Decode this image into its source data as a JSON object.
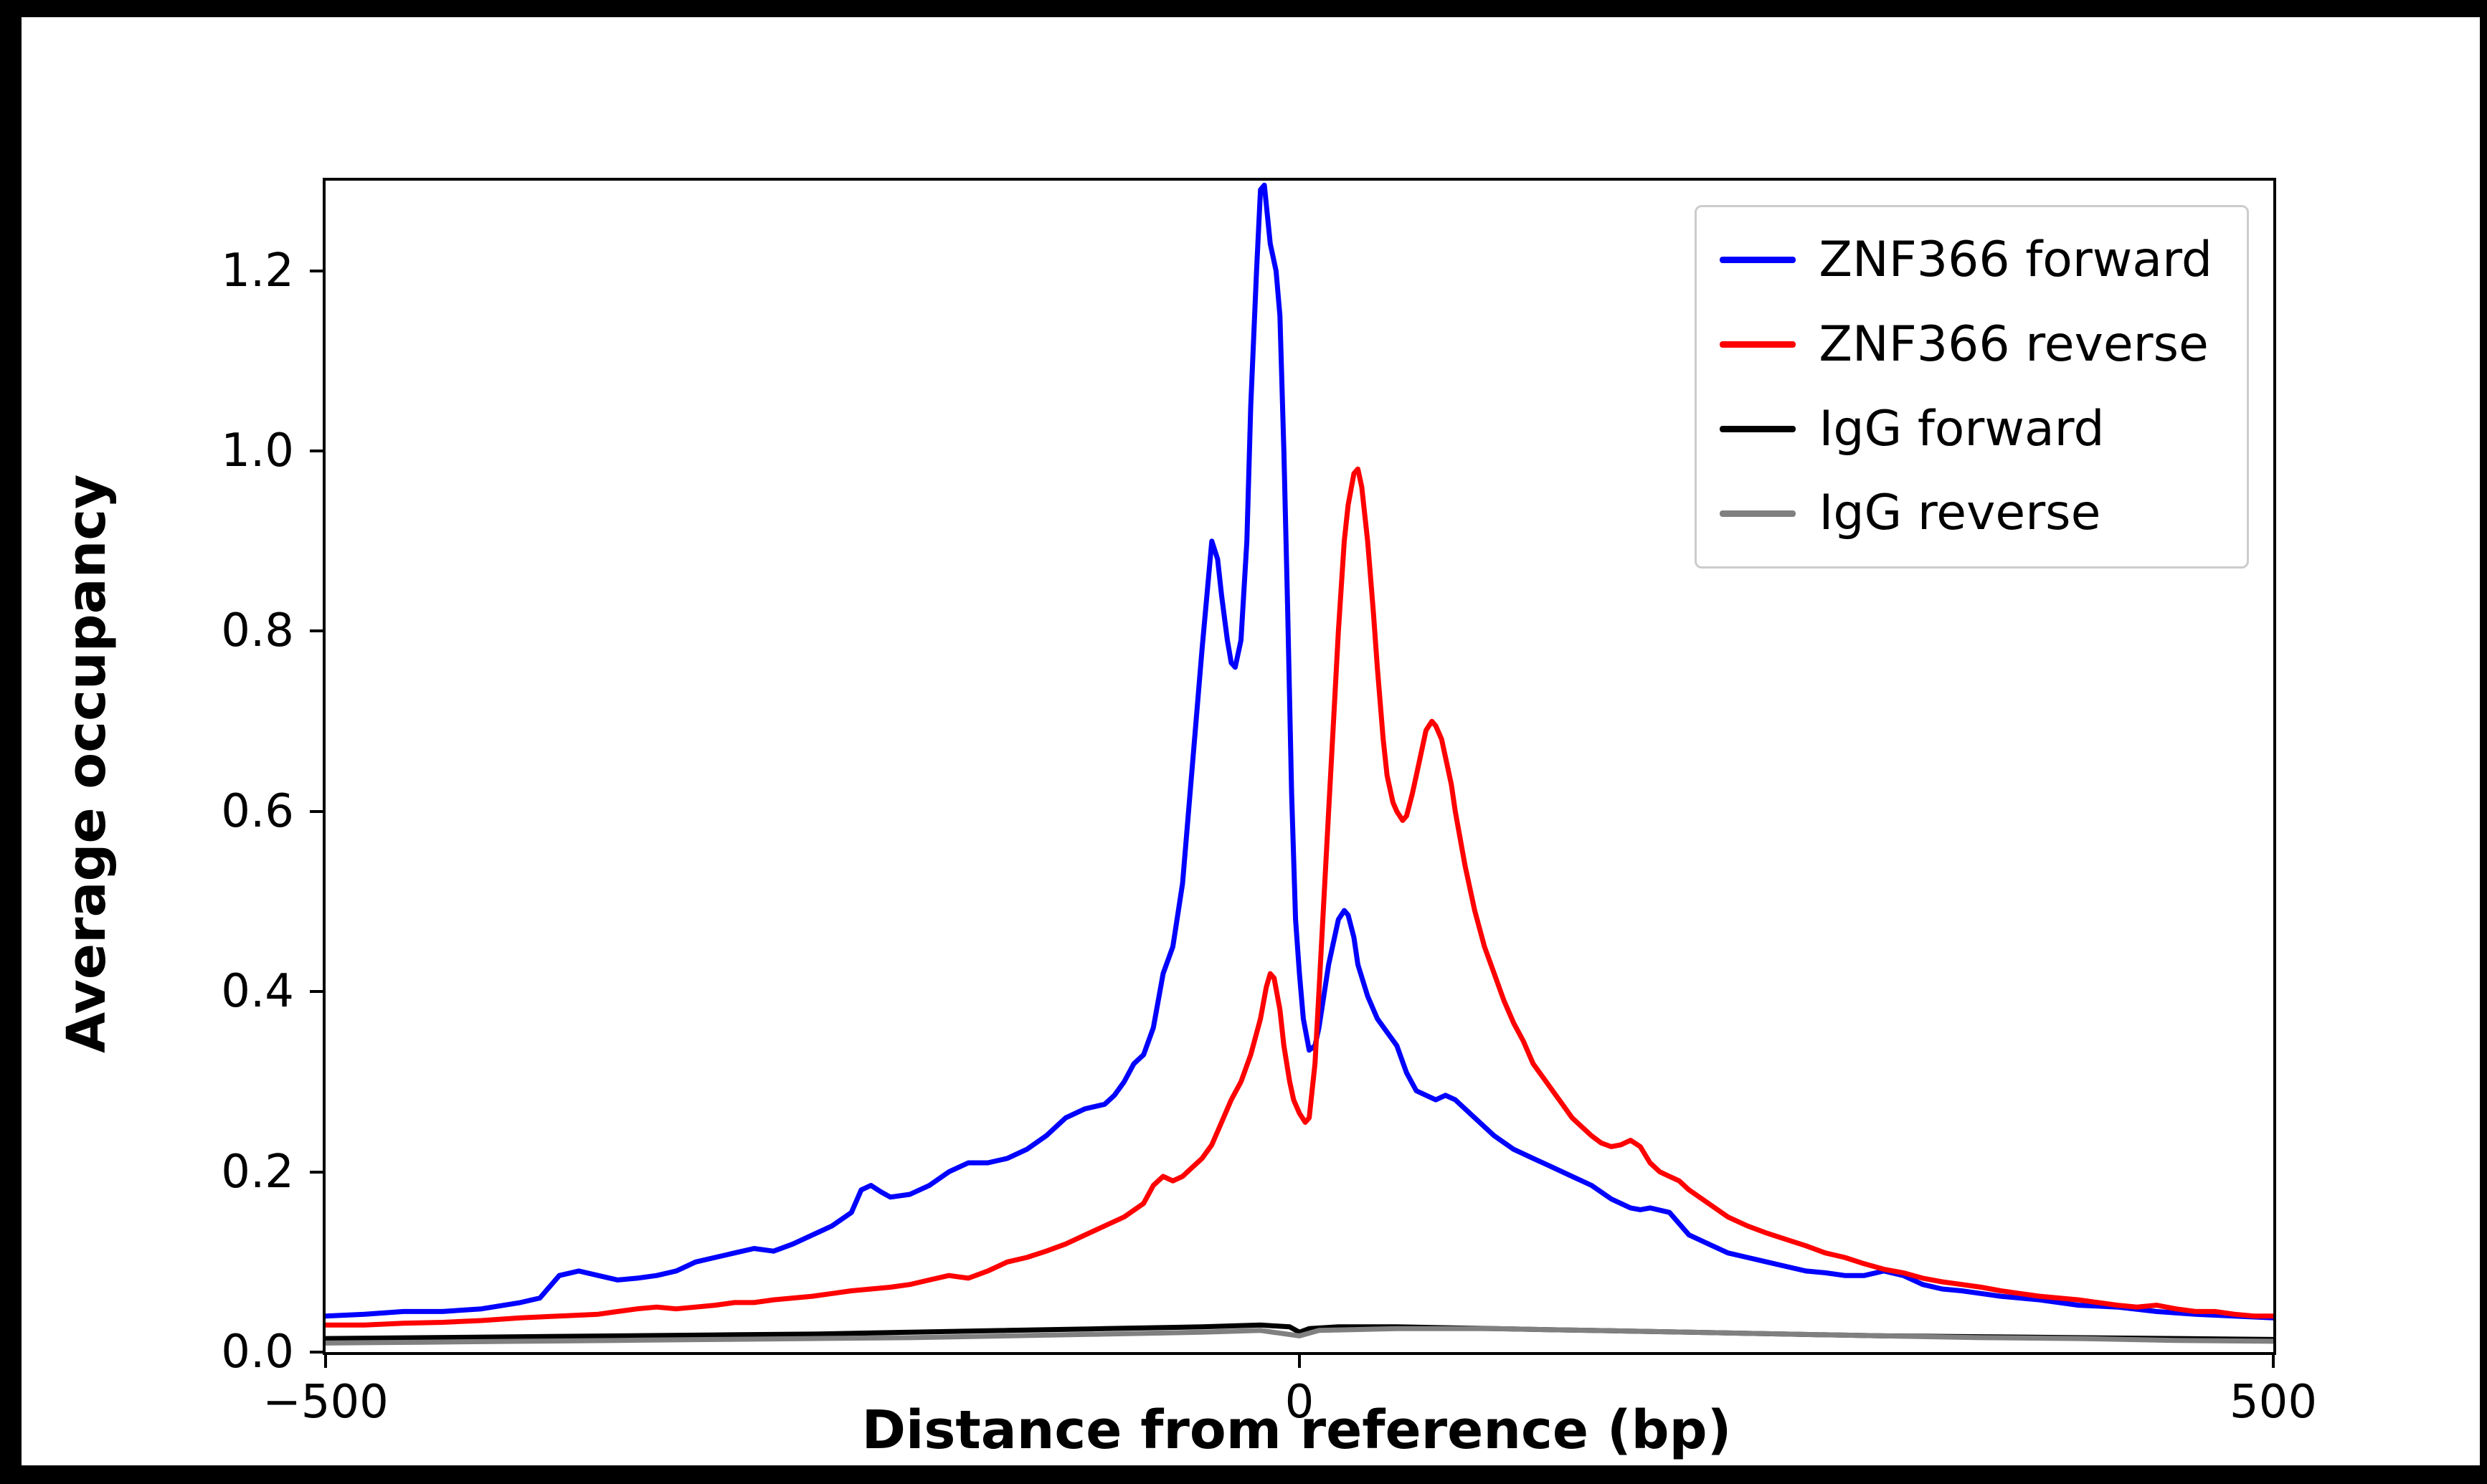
{
  "chart_data": {
    "type": "line",
    "title": "",
    "xlabel": "Distance from reference (bp)",
    "ylabel": "Average occupancy",
    "xlim": [
      -500,
      500
    ],
    "ylim": [
      0,
      1.3
    ],
    "grid": false,
    "legend_position": "upper right",
    "xticks": [
      {
        "value": -500,
        "label": "−500"
      },
      {
        "value": 0,
        "label": "0"
      },
      {
        "value": 500,
        "label": "500"
      }
    ],
    "yticks": [
      {
        "value": 0.0,
        "label": "0.0"
      },
      {
        "value": 0.2,
        "label": "0.2"
      },
      {
        "value": 0.4,
        "label": "0.4"
      },
      {
        "value": 0.6,
        "label": "0.6"
      },
      {
        "value": 0.8,
        "label": "0.8"
      },
      {
        "value": 1.0,
        "label": "1.0"
      },
      {
        "value": 1.2,
        "label": "1.2"
      }
    ],
    "series": [
      {
        "name": "ZNF366 forward",
        "color": "#0000ff",
        "x": [
          -500,
          -480,
          -460,
          -440,
          -420,
          -400,
          -390,
          -380,
          -370,
          -360,
          -350,
          -340,
          -330,
          -320,
          -310,
          -300,
          -290,
          -280,
          -270,
          -260,
          -250,
          -240,
          -230,
          -225,
          -220,
          -215,
          -210,
          -200,
          -190,
          -180,
          -170,
          -160,
          -150,
          -140,
          -130,
          -120,
          -110,
          -100,
          -95,
          -90,
          -85,
          -80,
          -75,
          -70,
          -65,
          -60,
          -55,
          -50,
          -45,
          -42,
          -40,
          -37,
          -35,
          -33,
          -30,
          -27,
          -25,
          -22,
          -20,
          -18,
          -15,
          -12,
          -10,
          -8,
          -6,
          -4,
          -2,
          0,
          2,
          5,
          8,
          10,
          15,
          20,
          23,
          25,
          28,
          30,
          35,
          40,
          45,
          50,
          55,
          60,
          65,
          70,
          75,
          80,
          90,
          100,
          110,
          120,
          130,
          140,
          150,
          160,
          170,
          175,
          180,
          190,
          200,
          210,
          220,
          230,
          240,
          250,
          260,
          270,
          280,
          290,
          300,
          310,
          320,
          330,
          340,
          350,
          360,
          370,
          380,
          390,
          400,
          420,
          440,
          460,
          480,
          500
        ],
        "y": [
          0.04,
          0.042,
          0.045,
          0.045,
          0.048,
          0.055,
          0.06,
          0.085,
          0.09,
          0.085,
          0.08,
          0.082,
          0.085,
          0.09,
          0.1,
          0.105,
          0.11,
          0.115,
          0.112,
          0.12,
          0.13,
          0.14,
          0.155,
          0.18,
          0.185,
          0.178,
          0.172,
          0.175,
          0.185,
          0.2,
          0.21,
          0.21,
          0.215,
          0.225,
          0.24,
          0.26,
          0.27,
          0.275,
          0.285,
          0.3,
          0.32,
          0.33,
          0.36,
          0.42,
          0.45,
          0.52,
          0.65,
          0.78,
          0.9,
          0.88,
          0.84,
          0.79,
          0.765,
          0.76,
          0.79,
          0.9,
          1.05,
          1.2,
          1.29,
          1.295,
          1.23,
          1.2,
          1.15,
          1.0,
          0.82,
          0.62,
          0.48,
          0.42,
          0.37,
          0.335,
          0.34,
          0.36,
          0.43,
          0.48,
          0.49,
          0.485,
          0.46,
          0.43,
          0.395,
          0.37,
          0.355,
          0.34,
          0.31,
          0.29,
          0.285,
          0.28,
          0.285,
          0.28,
          0.26,
          0.24,
          0.225,
          0.215,
          0.205,
          0.195,
          0.185,
          0.17,
          0.16,
          0.158,
          0.16,
          0.155,
          0.13,
          0.12,
          0.11,
          0.105,
          0.1,
          0.095,
          0.09,
          0.088,
          0.085,
          0.085,
          0.09,
          0.085,
          0.075,
          0.07,
          0.068,
          0.065,
          0.062,
          0.06,
          0.058,
          0.055,
          0.052,
          0.05,
          0.045,
          0.042,
          0.04,
          0.038
        ]
      },
      {
        "name": "ZNF366 reverse",
        "color": "#ff0000",
        "x": [
          -500,
          -480,
          -460,
          -440,
          -420,
          -400,
          -380,
          -360,
          -350,
          -340,
          -330,
          -320,
          -310,
          -300,
          -290,
          -280,
          -270,
          -260,
          -250,
          -240,
          -230,
          -220,
          -210,
          -200,
          -190,
          -180,
          -170,
          -160,
          -150,
          -140,
          -130,
          -120,
          -110,
          -100,
          -90,
          -80,
          -75,
          -70,
          -65,
          -60,
          -55,
          -50,
          -45,
          -40,
          -35,
          -30,
          -25,
          -20,
          -17,
          -15,
          -13,
          -10,
          -8,
          -5,
          -3,
          0,
          3,
          5,
          8,
          10,
          13,
          15,
          18,
          20,
          23,
          25,
          28,
          30,
          32,
          35,
          38,
          40,
          43,
          45,
          48,
          50,
          53,
          55,
          58,
          60,
          63,
          65,
          68,
          70,
          73,
          75,
          78,
          80,
          85,
          90,
          95,
          100,
          105,
          110,
          115,
          120,
          125,
          130,
          135,
          140,
          145,
          150,
          155,
          160,
          165,
          170,
          175,
          180,
          185,
          190,
          195,
          200,
          210,
          220,
          230,
          240,
          250,
          260,
          270,
          280,
          290,
          300,
          310,
          320,
          330,
          340,
          350,
          360,
          370,
          380,
          390,
          400,
          410,
          420,
          430,
          440,
          450,
          460,
          470,
          480,
          490,
          500
        ],
        "y": [
          0.03,
          0.03,
          0.032,
          0.033,
          0.035,
          0.038,
          0.04,
          0.042,
          0.045,
          0.048,
          0.05,
          0.048,
          0.05,
          0.052,
          0.055,
          0.055,
          0.058,
          0.06,
          0.062,
          0.065,
          0.068,
          0.07,
          0.072,
          0.075,
          0.08,
          0.085,
          0.082,
          0.09,
          0.1,
          0.105,
          0.112,
          0.12,
          0.13,
          0.14,
          0.15,
          0.165,
          0.185,
          0.195,
          0.19,
          0.195,
          0.205,
          0.215,
          0.23,
          0.255,
          0.28,
          0.3,
          0.33,
          0.37,
          0.405,
          0.42,
          0.415,
          0.38,
          0.34,
          0.3,
          0.28,
          0.265,
          0.255,
          0.26,
          0.32,
          0.4,
          0.52,
          0.6,
          0.72,
          0.8,
          0.9,
          0.94,
          0.975,
          0.98,
          0.96,
          0.9,
          0.82,
          0.76,
          0.68,
          0.64,
          0.61,
          0.6,
          0.59,
          0.595,
          0.62,
          0.64,
          0.67,
          0.69,
          0.7,
          0.695,
          0.68,
          0.66,
          0.63,
          0.6,
          0.54,
          0.49,
          0.45,
          0.42,
          0.39,
          0.365,
          0.345,
          0.32,
          0.305,
          0.29,
          0.275,
          0.26,
          0.25,
          0.24,
          0.232,
          0.228,
          0.23,
          0.235,
          0.228,
          0.21,
          0.2,
          0.195,
          0.19,
          0.18,
          0.165,
          0.15,
          0.14,
          0.132,
          0.125,
          0.118,
          0.11,
          0.105,
          0.098,
          0.092,
          0.088,
          0.082,
          0.078,
          0.075,
          0.072,
          0.068,
          0.065,
          0.062,
          0.06,
          0.058,
          0.055,
          0.052,
          0.05,
          0.052,
          0.048,
          0.045,
          0.045,
          0.042,
          0.04,
          0.04
        ]
      },
      {
        "name": "IgG forward",
        "color": "#000000",
        "x": [
          -500,
          -450,
          -400,
          -350,
          -300,
          -250,
          -200,
          -150,
          -100,
          -50,
          -20,
          -5,
          0,
          5,
          20,
          50,
          100,
          150,
          200,
          250,
          300,
          350,
          400,
          450,
          500
        ],
        "y": [
          0.015,
          0.016,
          0.017,
          0.018,
          0.019,
          0.02,
          0.022,
          0.024,
          0.026,
          0.028,
          0.03,
          0.028,
          0.022,
          0.026,
          0.028,
          0.028,
          0.026,
          0.024,
          0.022,
          0.02,
          0.018,
          0.017,
          0.016,
          0.015,
          0.014
        ]
      },
      {
        "name": "IgG reverse",
        "color": "#808080",
        "x": [
          -500,
          -450,
          -400,
          -350,
          -300,
          -250,
          -200,
          -150,
          -100,
          -50,
          -20,
          0,
          10,
          50,
          100,
          150,
          200,
          250,
          300,
          350,
          400,
          450,
          500
        ],
        "y": [
          0.01,
          0.011,
          0.012,
          0.013,
          0.014,
          0.015,
          0.016,
          0.018,
          0.02,
          0.022,
          0.024,
          0.018,
          0.024,
          0.026,
          0.026,
          0.024,
          0.022,
          0.02,
          0.018,
          0.016,
          0.015,
          0.013,
          0.012
        ]
      }
    ]
  }
}
